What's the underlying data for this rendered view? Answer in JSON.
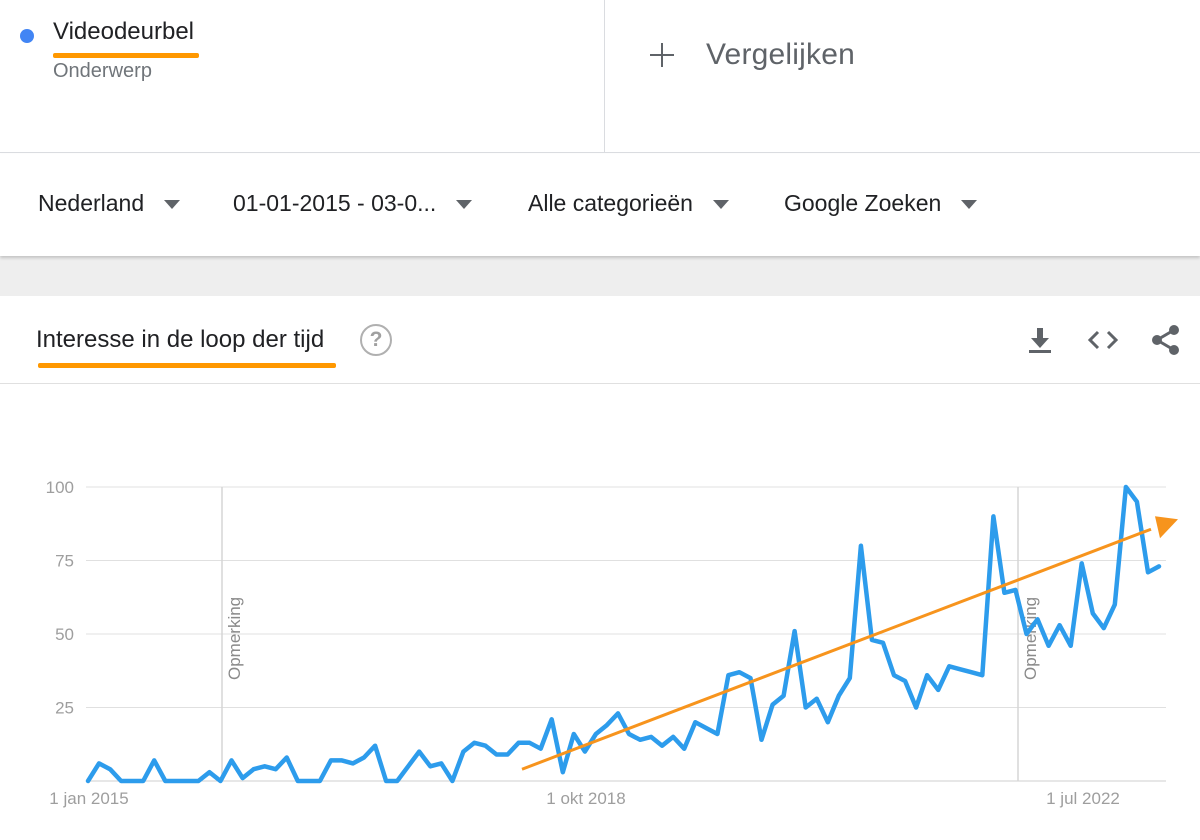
{
  "term": {
    "name": "Videodeurbel",
    "type": "Onderwerp",
    "dot_color": "#4285f4",
    "highlight_color": "#ff9800"
  },
  "compare": {
    "label": "Vergelijken",
    "icon": "plus-icon"
  },
  "filters": {
    "region": "Nederland",
    "date_range": "01-01-2015 - 03-0...",
    "category": "Alle categorieën",
    "search_type": "Google Zoeken"
  },
  "card": {
    "title": "Interesse in de loop der tijd",
    "help_symbol": "?",
    "icons": [
      "download-icon",
      "embed-icon",
      "share-icon"
    ]
  },
  "chart_data": {
    "type": "line",
    "series": [
      {
        "color": "#2d9cec",
        "values": [
          0,
          6,
          4,
          0,
          0,
          0,
          7,
          0,
          0,
          0,
          0,
          3,
          0,
          7,
          1,
          4,
          5,
          4,
          8,
          0,
          0,
          0,
          7,
          7,
          6,
          8,
          12,
          0,
          0,
          5,
          10,
          5,
          6,
          0,
          10,
          13,
          12,
          9,
          9,
          13,
          13,
          11,
          21,
          3,
          16,
          10,
          16,
          19,
          23,
          16,
          14,
          15,
          12,
          15,
          11,
          20,
          18,
          16,
          36,
          37,
          35,
          14,
          26,
          29,
          51,
          25,
          28,
          20,
          29,
          35,
          80,
          48,
          47,
          36,
          34,
          25,
          36,
          31,
          39,
          38,
          37,
          36,
          90,
          64,
          65,
          50,
          55,
          46,
          53,
          46,
          74,
          57,
          52,
          60,
          100,
          95,
          71,
          73
        ]
      }
    ],
    "trend_line": {
      "color": "#f7941d",
      "from": {
        "x": "jan 2019",
        "y": 4
      },
      "to": {
        "x": "jan 2023",
        "y": 87
      }
    },
    "x_ticks": [
      "1 jan 2015",
      "1 okt 2018",
      "1 jul 2022"
    ],
    "y_ticks": [
      "100",
      "75",
      "50",
      "25"
    ],
    "ylim": [
      0,
      100
    ],
    "notes": [
      "Opmerking",
      "Opmerking"
    ],
    "grid": true
  }
}
